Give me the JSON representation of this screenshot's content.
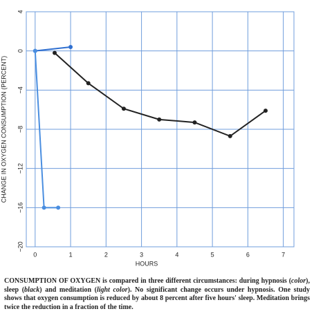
{
  "chart_data": {
    "type": "line",
    "ylabel": "CHANGE IN OXYGEN CONSUMPTION (PERCENT)",
    "xlabel": "HOURS",
    "xlim": [
      -0.25,
      7.3
    ],
    "ylim": [
      -20,
      4
    ],
    "xticks": [
      0,
      1,
      2,
      3,
      4,
      5,
      6,
      7
    ],
    "yticks": [
      4,
      0,
      {
        "value": -4,
        "label": "−4"
      },
      {
        "value": -8,
        "label": "−8"
      },
      {
        "value": -12,
        "label": "−12"
      },
      {
        "value": -16,
        "label": "−16"
      },
      {
        "value": -20,
        "label": "−20"
      }
    ],
    "grid": true,
    "series": [
      {
        "color": "#2f6fd0",
        "x": [
          0,
          1
        ],
        "values": [
          0,
          0.4
        ]
      },
      {
        "color": "#222222",
        "x": [
          0.55,
          1.5,
          2.5,
          3.5,
          4.5,
          5.5,
          6.5
        ],
        "values": [
          -0.2,
          -3.3,
          -5.9,
          -7.0,
          -7.3,
          -8.7,
          -6.1
        ]
      },
      {
        "color": "#4a8ee0",
        "x": [
          0,
          0.25,
          0.65
        ],
        "values": [
          0,
          -16,
          -16
        ]
      }
    ]
  },
  "caption": [
    "CONSUMPTION OF OXYGEN",
    " is compared in three different circumstances: during hypnosis (",
    "color",
    "), sleep (",
    "black",
    ") and meditation (",
    "light color",
    "). No significant change occurs under hypnosis. One study shows that oxygen consumption is reduced by about 8 percent after five hours' sleep. Meditation brings twice the reduction in a fraction of the time."
  ]
}
